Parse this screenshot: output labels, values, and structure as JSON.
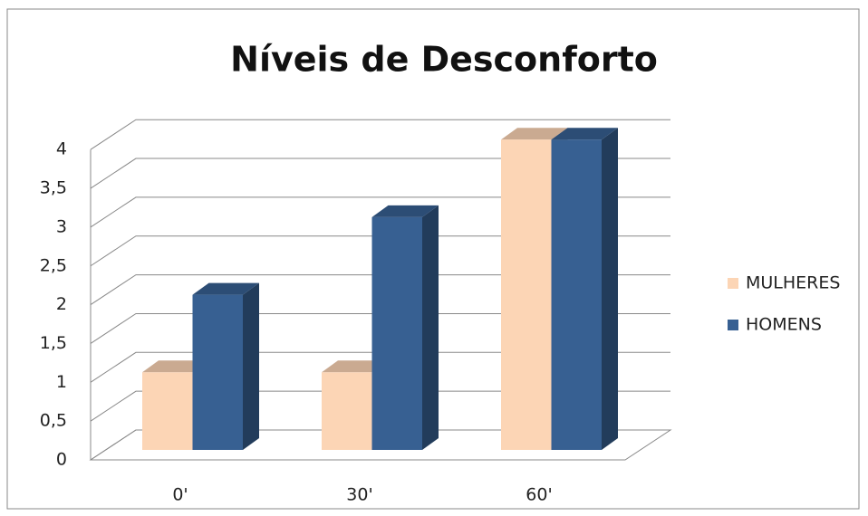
{
  "chart_data": {
    "type": "bar3d",
    "title": "Níveis de Desconforto",
    "categories": [
      "0'",
      "30'",
      "60'"
    ],
    "series": [
      {
        "name": "MULHERES",
        "color": "#fcd5b5",
        "values": [
          1,
          1,
          4
        ]
      },
      {
        "name": "HOMENS",
        "color": "#376092",
        "values": [
          2,
          3,
          4
        ]
      }
    ],
    "ylim": [
      0,
      4
    ],
    "yticks": [
      0,
      {
        "value": 0.5,
        "label": "0,5"
      },
      1,
      {
        "value": 1.5,
        "label": "1,5"
      },
      2,
      {
        "value": 2.5,
        "label": "2,5"
      },
      3,
      {
        "value": 3.5,
        "label": "3,5"
      },
      4
    ],
    "grid": true,
    "legend": "right"
  }
}
